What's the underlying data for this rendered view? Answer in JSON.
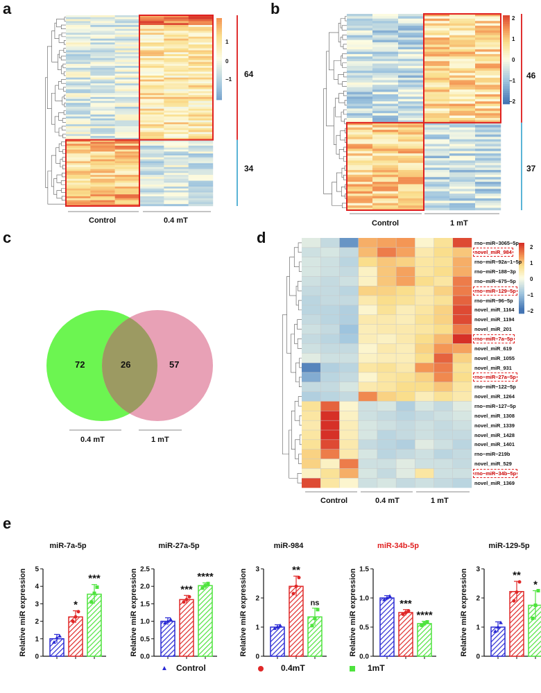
{
  "panels": {
    "a": "a",
    "b": "b",
    "c": "c",
    "d": "d",
    "e": "e"
  },
  "panel_a": {
    "groups": [
      "Control",
      "0.4 mT"
    ],
    "cluster_counts": [
      "64",
      "34"
    ],
    "colorbar_ticks": [
      "1",
      "0",
      "−1"
    ]
  },
  "panel_b": {
    "groups": [
      "Control",
      "1 mT"
    ],
    "cluster_counts": [
      "46",
      "37"
    ],
    "colorbar_ticks": [
      "2",
      "1",
      "0",
      "−1",
      "−2"
    ]
  },
  "panel_c": {
    "sets": [
      "0.4 mT",
      "1 mT"
    ],
    "only_a": "72",
    "overlap": "26",
    "only_b": "57",
    "colors": {
      "a": "#6cf551",
      "b": "#e8a1b6",
      "overlap": "#9c9a62"
    }
  },
  "panel_d": {
    "groups": [
      "Control",
      "0.4 mT",
      "1 mT"
    ],
    "colorbar_ticks": [
      "2",
      "1",
      "0",
      "−1",
      "−2"
    ],
    "rows": [
      {
        "name": "rno−miR−3065−5p",
        "highlight": false
      },
      {
        "name": "novel_miR_984",
        "highlight": true
      },
      {
        "name": "rno−miR−92a−1−5p",
        "highlight": false
      },
      {
        "name": "rno−miR−188−3p",
        "highlight": false
      },
      {
        "name": "rno−miR−675−5p",
        "highlight": false
      },
      {
        "name": "rno−miR−129−5p",
        "highlight": true
      },
      {
        "name": "rno−miR−96−5p",
        "highlight": false
      },
      {
        "name": "novel_miR_1164",
        "highlight": false
      },
      {
        "name": "novel_miR_1194",
        "highlight": false
      },
      {
        "name": "novel_miR_201",
        "highlight": false
      },
      {
        "name": "rno−miR−7a−5p",
        "highlight": true
      },
      {
        "name": "novel_miR_619",
        "highlight": false
      },
      {
        "name": "novel_miR_1055",
        "highlight": false
      },
      {
        "name": "novel_miR_931",
        "highlight": false
      },
      {
        "name": "rno−miR−27a−5p",
        "highlight": true
      },
      {
        "name": "rno−miR−122−5p",
        "highlight": false
      },
      {
        "name": "novel_miR_1264",
        "highlight": false
      },
      {
        "name": "rno−miR−127−5p",
        "highlight": false
      },
      {
        "name": "novel_miR_1308",
        "highlight": false
      },
      {
        "name": "novel_miR_1339",
        "highlight": false
      },
      {
        "name": "novel_miR_1428",
        "highlight": false
      },
      {
        "name": "novel_miR_1401",
        "highlight": false
      },
      {
        "name": "rno−miR−219b",
        "highlight": false
      },
      {
        "name": "novel_miR_529",
        "highlight": false
      },
      {
        "name": "rno−miR−34b−5p",
        "highlight": true
      },
      {
        "name": "novel_miR_1369",
        "highlight": false
      }
    ],
    "values": [
      [
        -0.3,
        -0.6,
        -1.6,
        1.2,
        1.3,
        1.4,
        0.2,
        0.7,
        2.0
      ],
      [
        -0.5,
        -0.4,
        -0.6,
        1.1,
        1.6,
        1.3,
        0.5,
        0.8,
        1.0
      ],
      [
        -0.4,
        -0.5,
        -0.7,
        0.8,
        1.0,
        0.9,
        0.6,
        0.7,
        1.2
      ],
      [
        -0.4,
        -0.5,
        -0.6,
        0.3,
        1.0,
        1.3,
        0.6,
        0.8,
        1.2
      ],
      [
        -0.5,
        -0.6,
        -0.5,
        0.3,
        1.0,
        1.3,
        0.8,
        0.6,
        1.6
      ],
      [
        -0.6,
        -0.6,
        -0.7,
        0.9,
        0.9,
        0.8,
        0.5,
        0.9,
        1.6
      ],
      [
        -0.7,
        -0.6,
        -0.6,
        0.5,
        0.8,
        0.7,
        0.5,
        0.7,
        1.8
      ],
      [
        -0.7,
        -0.7,
        -0.8,
        0.2,
        0.7,
        0.4,
        0.6,
        0.9,
        2.0
      ],
      [
        -0.6,
        -0.7,
        -0.8,
        0.5,
        0.5,
        0.4,
        0.7,
        0.9,
        2.0
      ],
      [
        -0.5,
        -0.6,
        -1.0,
        0.4,
        0.5,
        0.5,
        0.6,
        0.8,
        1.6
      ],
      [
        -0.6,
        -0.7,
        -0.9,
        0.4,
        0.3,
        0.5,
        0.8,
        1.1,
        2.2
      ],
      [
        -0.5,
        -0.6,
        -0.6,
        0.2,
        0.5,
        0.4,
        0.9,
        1.4,
        1.3
      ],
      [
        -0.3,
        -0.5,
        -0.5,
        0.3,
        0.4,
        0.4,
        0.8,
        1.8,
        0.9
      ],
      [
        -1.8,
        -0.8,
        -0.7,
        0.6,
        0.7,
        0.5,
        1.4,
        1.6,
        0.7
      ],
      [
        -1.3,
        -0.7,
        -0.6,
        0.2,
        0.6,
        0.7,
        0.9,
        1.5,
        0.8
      ],
      [
        -0.6,
        -0.6,
        -0.4,
        0.5,
        0.6,
        0.8,
        0.8,
        1.0,
        0.6
      ],
      [
        -0.8,
        -0.7,
        -0.6,
        1.5,
        0.9,
        0.8,
        0.4,
        0.7,
        0.5
      ],
      [
        0.7,
        1.8,
        0.2,
        -0.5,
        -0.4,
        -0.8,
        -0.4,
        -0.6,
        -0.3
      ],
      [
        0.6,
        2.3,
        0.3,
        -0.5,
        -0.6,
        -0.7,
        -0.6,
        -0.5,
        -0.4
      ],
      [
        0.5,
        2.3,
        0.4,
        -0.4,
        -0.5,
        -0.6,
        -0.5,
        -0.6,
        -0.5
      ],
      [
        0.6,
        2.2,
        0.4,
        -0.4,
        -0.7,
        -0.6,
        -0.5,
        -0.6,
        -0.6
      ],
      [
        0.7,
        2.0,
        0.5,
        -0.6,
        -0.7,
        -0.8,
        -0.3,
        -0.5,
        -0.7
      ],
      [
        0.9,
        1.6,
        0.5,
        -0.4,
        -0.7,
        -0.6,
        -0.5,
        -0.7,
        -0.6
      ],
      [
        0.9,
        0.3,
        1.6,
        -0.5,
        -0.5,
        -0.3,
        -0.5,
        -0.5,
        -0.6
      ],
      [
        0.3,
        0.7,
        1.2,
        -0.4,
        -0.6,
        -0.3,
        0.6,
        -0.5,
        -0.5
      ],
      [
        2.0,
        0.6,
        0.2,
        -0.5,
        -0.4,
        -0.6,
        -0.5,
        -0.6,
        -0.7
      ]
    ]
  },
  "panel_e": {
    "ylabel": "Relative miR expression",
    "legend": [
      {
        "label": "Control",
        "color": "#2a2ad4"
      },
      {
        "label": "0.4mT",
        "color": "#e02828"
      },
      {
        "label": "1mT",
        "color": "#4ee33d"
      }
    ]
  },
  "chart_data": [
    {
      "type": "bar",
      "title": "miR-7a-5p",
      "categories": [
        "Control",
        "0.4mT",
        "1mT"
      ],
      "values": [
        1.0,
        2.25,
        3.55
      ],
      "errors": [
        0.25,
        0.35,
        0.55
      ],
      "points": [
        [
          0.8,
          1.05,
          1.15
        ],
        [
          2.0,
          2.25,
          2.55
        ],
        [
          3.1,
          3.6,
          3.95
        ]
      ],
      "significance": [
        "",
        "*",
        "***"
      ],
      "ylabel": "Relative miR expression",
      "ylim": [
        0,
        5
      ],
      "yticks": [
        0,
        1,
        2,
        3,
        4,
        5
      ],
      "title_color": "#111111"
    },
    {
      "type": "bar",
      "title": "miR-27a-5p",
      "categories": [
        "Control",
        "0.4mT",
        "1mT"
      ],
      "values": [
        1.0,
        1.62,
        2.02
      ],
      "errors": [
        0.1,
        0.12,
        0.08
      ],
      "points": [
        [
          0.95,
          1.0,
          1.05
        ],
        [
          1.55,
          1.62,
          1.7
        ],
        [
          1.95,
          2.02,
          2.08
        ]
      ],
      "significance": [
        "",
        "***",
        "****"
      ],
      "ylabel": "Relative miR expression",
      "ylim": [
        0,
        2.5
      ],
      "yticks": [
        0,
        0.5,
        1.0,
        1.5,
        2.0,
        2.5
      ],
      "title_color": "#111111"
    },
    {
      "type": "bar",
      "title": "miR-984",
      "categories": [
        "Control",
        "0.4mT",
        "1mT"
      ],
      "values": [
        1.0,
        2.4,
        1.35
      ],
      "errors": [
        0.08,
        0.35,
        0.3
      ],
      "points": [
        [
          0.95,
          1.0,
          1.05
        ],
        [
          2.15,
          2.4,
          2.7
        ],
        [
          1.05,
          1.3,
          1.6
        ]
      ],
      "significance": [
        "",
        "**",
        "ns"
      ],
      "ylabel": "Relative miR expression",
      "ylim": [
        0,
        3
      ],
      "yticks": [
        0,
        1,
        2,
        3
      ],
      "title_color": "#111111"
    },
    {
      "type": "bar",
      "title": "miR-34b-5p",
      "categories": [
        "Control",
        "0.4mT",
        "1mT"
      ],
      "values": [
        1.0,
        0.75,
        0.56
      ],
      "errors": [
        0.04,
        0.05,
        0.04
      ],
      "points": [
        [
          0.97,
          1.0,
          1.03
        ],
        [
          0.72,
          0.75,
          0.78
        ],
        [
          0.53,
          0.56,
          0.59
        ]
      ],
      "significance": [
        "",
        "***",
        "****"
      ],
      "ylabel": "Relative miR expression",
      "ylim": [
        0,
        1.5
      ],
      "yticks": [
        0,
        0.5,
        1.0,
        1.5
      ],
      "title_color": "#e02020"
    },
    {
      "type": "bar",
      "title": "miR-129-5p",
      "categories": [
        "Control",
        "0.4mT",
        "1mT"
      ],
      "values": [
        1.0,
        2.22,
        1.75
      ],
      "errors": [
        0.18,
        0.35,
        0.5
      ],
      "points": [
        [
          0.85,
          1.0,
          1.15
        ],
        [
          1.9,
          2.2,
          2.55
        ],
        [
          1.3,
          1.75,
          2.25
        ]
      ],
      "significance": [
        "",
        "**",
        "*"
      ],
      "ylabel": "Relative miR expression",
      "ylim": [
        0,
        3
      ],
      "yticks": [
        0,
        1,
        2,
        3
      ],
      "title_color": "#111111"
    }
  ]
}
